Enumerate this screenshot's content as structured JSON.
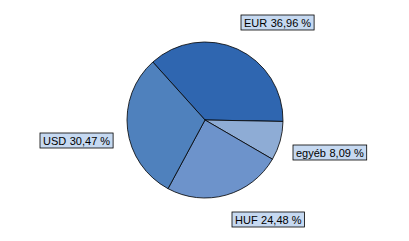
{
  "chart_data": {
    "type": "pie",
    "categories": [
      "EUR",
      "egyéb",
      "HUF",
      "USD"
    ],
    "values": [
      36.96,
      8.09,
      24.48,
      30.47
    ],
    "value_labels": [
      "36,96 %",
      "8,09 %",
      "24,48 %",
      "30,47 %"
    ],
    "colors": [
      "#2f66b0",
      "#8eacd5",
      "#6d93cb",
      "#4f81bd"
    ],
    "data_labels": true
  }
}
